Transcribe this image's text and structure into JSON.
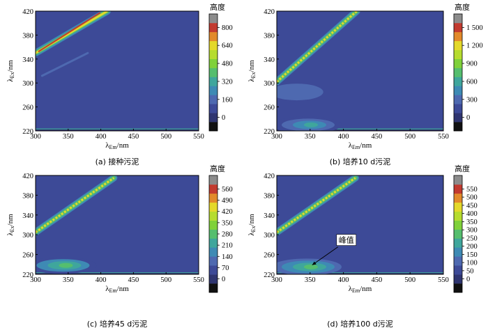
{
  "colors": {
    "background": "#3D4A97",
    "axis": "#000000"
  },
  "colorbar_title": "高度",
  "panels": [
    {
      "caption": "(a) 接种污泥",
      "chart_data": {
        "type": "heatmap",
        "title": "",
        "xlabel": "λEm/nm",
        "ylabel": "λEx/nm",
        "xlim": [
          300,
          550
        ],
        "ylim": [
          220,
          420
        ],
        "x_ticks": [
          "300",
          "350",
          "400",
          "450",
          "500",
          "550"
        ],
        "y_ticks": [
          "220",
          "260",
          "300",
          "340",
          "380",
          "420"
        ],
        "colorbar": {
          "title": "高度",
          "ticks": [
            "0",
            "160",
            "320",
            "480",
            "640",
            "800"
          ],
          "levels": [
            -80,
            0,
            80,
            160,
            240,
            320,
            400,
            480,
            560,
            640,
            720,
            800,
            880
          ],
          "colors": [
            "#111111",
            "#2F3570",
            "#3D4A97",
            "#4E69B0",
            "#3E8AB4",
            "#3FA69C",
            "#55BE6E",
            "#7FD13A",
            "#B6DC2F",
            "#E4D92A",
            "#E28A2A",
            "#C23A2F",
            "#8C8C8C"
          ]
        },
        "features": [
          {
            "kind": "rayleigh_scatter",
            "em": [
              300,
              410
            ],
            "ex": [
              350,
              420
            ],
            "peak": 800
          },
          {
            "kind": "band",
            "em": [
              310,
              380
            ],
            "ex": [
              312,
              350
            ],
            "peak": 100
          }
        ]
      }
    },
    {
      "caption": "(b) 培养10 d污泥",
      "chart_data": {
        "type": "heatmap",
        "title": "",
        "xlabel": "λEm/nm",
        "ylabel": "λEx/nm",
        "xlim": [
          300,
          550
        ],
        "ylim": [
          220,
          420
        ],
        "x_ticks": [
          "300",
          "350",
          "400",
          "450",
          "500",
          "550"
        ],
        "y_ticks": [
          "220",
          "260",
          "300",
          "340",
          "380",
          "420"
        ],
        "colorbar": {
          "title": "高度",
          "ticks": [
            "0",
            "300",
            "600",
            "900",
            "1 200",
            "1 500"
          ],
          "levels": [
            -150,
            0,
            150,
            300,
            450,
            600,
            750,
            900,
            1050,
            1200,
            1350,
            1500,
            1650
          ],
          "colors": [
            "#111111",
            "#2F3570",
            "#3D4A97",
            "#4E69B0",
            "#3E8AB4",
            "#3FA69C",
            "#55BE6E",
            "#7FD13A",
            "#B6DC2F",
            "#E4D92A",
            "#E28A2A",
            "#C23A2F",
            "#8C8C8C"
          ]
        },
        "features": [
          {
            "kind": "rayleigh_scatter",
            "em": [
              300,
              420
            ],
            "ex": [
              302,
              420
            ],
            "peak": 1500
          },
          {
            "kind": "blob",
            "em": 345,
            "ex": 230,
            "peak": 600
          },
          {
            "kind": "blob",
            "em": 330,
            "ex": 285,
            "peak": 300
          }
        ]
      }
    },
    {
      "caption": "(c) 培养45 d污泥",
      "chart_data": {
        "type": "heatmap",
        "title": "",
        "xlabel": "λEm/nm",
        "ylabel": "λEx/nm",
        "xlim": [
          300,
          550
        ],
        "ylim": [
          220,
          420
        ],
        "x_ticks": [
          "300",
          "350",
          "400",
          "450",
          "500",
          "550"
        ],
        "y_ticks": [
          "220",
          "260",
          "300",
          "340",
          "380",
          "420"
        ],
        "colorbar": {
          "title": "高度",
          "ticks": [
            "0",
            "70",
            "140",
            "210",
            "280",
            "350",
            "420",
            "490",
            "560"
          ],
          "levels": [
            -35,
            0,
            35,
            70,
            105,
            140,
            175,
            210,
            245,
            280,
            315,
            350,
            385,
            420,
            455,
            490,
            525,
            560,
            595
          ],
          "colors": [
            "#111111",
            "#2F3570",
            "#3D4A97",
            "#4E69B0",
            "#3E8AB4",
            "#3FA69C",
            "#55BE6E",
            "#7FD13A",
            "#B6DC2F",
            "#E4D92A",
            "#E28A2A",
            "#C23A2F",
            "#8C8C8C"
          ]
        },
        "features": [
          {
            "kind": "rayleigh_scatter",
            "em": [
              300,
              420
            ],
            "ex": [
              305,
              415
            ],
            "peak": 560
          },
          {
            "kind": "blob",
            "em": 340,
            "ex": 238,
            "peak": 280
          }
        ]
      }
    },
    {
      "caption": "(d) 培养100 d污泥",
      "chart_data": {
        "type": "heatmap",
        "title": "",
        "xlabel": "λEm/nm",
        "ylabel": "λEx/nm",
        "xlim": [
          300,
          550
        ],
        "ylim": [
          220,
          420
        ],
        "x_ticks": [
          "300",
          "350",
          "400",
          "450",
          "500",
          "550"
        ],
        "y_ticks": [
          "220",
          "260",
          "300",
          "340",
          "380",
          "420"
        ],
        "colorbar": {
          "title": "高度",
          "ticks": [
            "0",
            "50",
            "100",
            "150",
            "200",
            "250",
            "300",
            "350",
            "400",
            "450",
            "500",
            "550"
          ],
          "levels": [
            -25,
            0,
            25,
            50,
            75,
            100,
            125,
            150,
            175,
            200,
            225,
            250,
            275,
            300,
            325,
            350,
            375,
            400,
            425,
            450,
            475,
            500,
            525,
            550,
            575
          ],
          "colors": [
            "#111111",
            "#2F3570",
            "#3D4A97",
            "#4E69B0",
            "#3E8AB4",
            "#3FA69C",
            "#55BE6E",
            "#7FD13A",
            "#B6DC2F",
            "#E4D92A",
            "#E28A2A",
            "#C23A2F",
            "#8C8C8C"
          ]
        },
        "features": [
          {
            "kind": "rayleigh_scatter",
            "em": [
              300,
              418
            ],
            "ex": [
              305,
              415
            ],
            "peak": 550
          },
          {
            "kind": "blob",
            "em": 345,
            "ex": 235,
            "peak": 300
          }
        ],
        "annotations": [
          {
            "text": "峰值",
            "target": {
              "em": 350,
              "ex": 236
            }
          }
        ]
      }
    }
  ]
}
